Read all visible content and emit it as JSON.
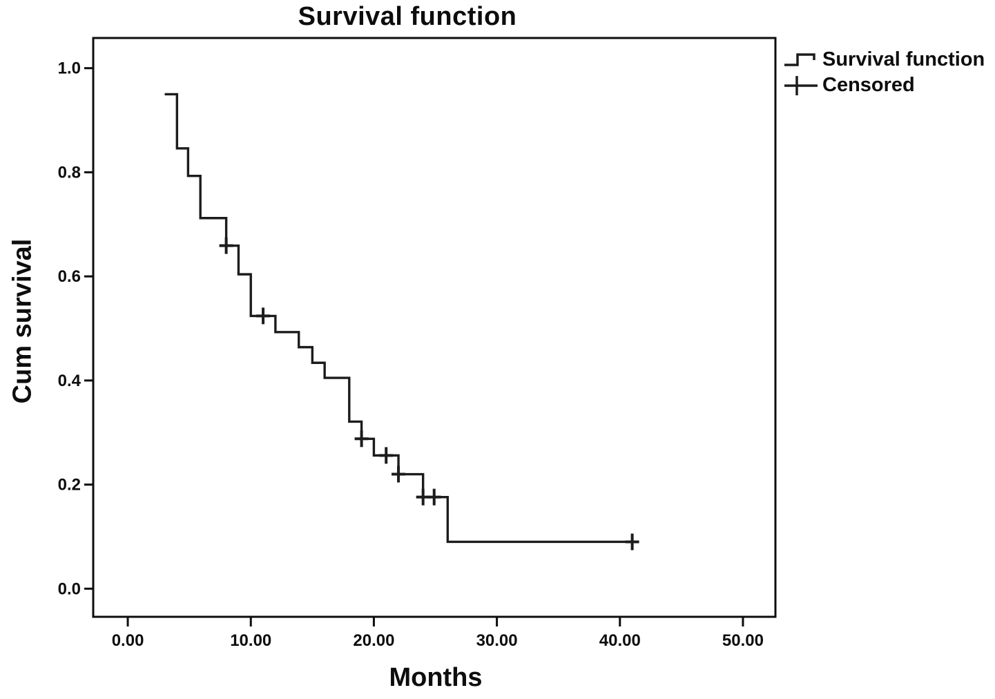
{
  "title": "Survival function",
  "axis": {
    "x_label": "Months",
    "y_label": "Cum survival"
  },
  "legend": {
    "items": [
      {
        "label": "Survival function",
        "glyph": "step-line"
      },
      {
        "label": "Censored",
        "glyph": "plus"
      }
    ]
  },
  "chart_data": {
    "type": "line",
    "subtype": "kaplan-meier-step",
    "title": "Survival function",
    "xlabel": "Months",
    "ylabel": "Cum survival",
    "xlim": [
      -2.81,
      52.64
    ],
    "ylim": [
      -0.054,
      1.058
    ],
    "grid": false,
    "legend_position": "top-right-outside",
    "line_color": "#1c1c1c",
    "frame_color": "#0d0d0d",
    "x_ticks": {
      "values": [
        0,
        10,
        20,
        30,
        40,
        50
      ],
      "labels": [
        "0.00",
        "10.00",
        "20.00",
        "30.00",
        "40.00",
        "50.00"
      ]
    },
    "y_ticks": {
      "values": [
        1.0,
        0.8,
        0.6,
        0.4,
        0.2,
        0.0
      ],
      "labels": [
        "1.0",
        "0.8",
        "0.6",
        "0.4",
        "0.2",
        "0.0"
      ]
    },
    "series": [
      {
        "name": "Survival function",
        "steps": [
          [
            3.0,
            0.95
          ],
          [
            4.0,
            0.846
          ],
          [
            4.9,
            0.793
          ],
          [
            5.9,
            0.712
          ],
          [
            8.0,
            0.659
          ],
          [
            9.0,
            0.604
          ],
          [
            10.0,
            0.524
          ],
          [
            12.0,
            0.493
          ],
          [
            13.9,
            0.464
          ],
          [
            15.0,
            0.434
          ],
          [
            16.0,
            0.405
          ],
          [
            18.0,
            0.321
          ],
          [
            19.0,
            0.288
          ],
          [
            20.0,
            0.256
          ],
          [
            22.0,
            0.22
          ],
          [
            24.0,
            0.176
          ],
          [
            26.0,
            0.09
          ]
        ],
        "end_time": 41.0
      }
    ],
    "censored": [
      [
        8.0,
        0.659
      ],
      [
        11.0,
        0.524
      ],
      [
        19.0,
        0.288
      ],
      [
        21.0,
        0.256
      ],
      [
        22.0,
        0.22
      ],
      [
        24.0,
        0.176
      ],
      [
        24.9,
        0.176
      ],
      [
        41.0,
        0.09
      ]
    ]
  }
}
